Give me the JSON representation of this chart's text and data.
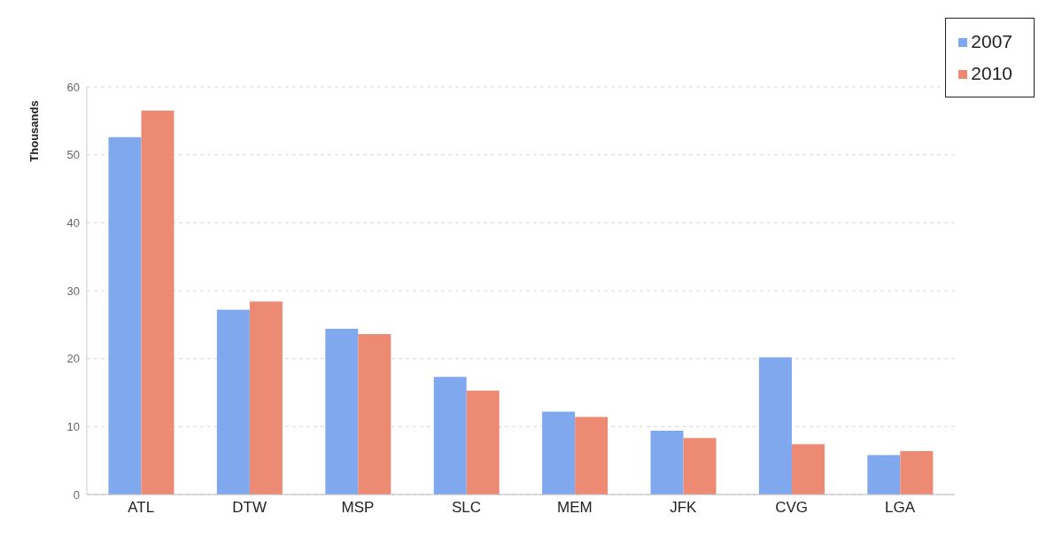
{
  "chart_data": {
    "type": "bar",
    "ylabel": "Thousands",
    "categories": [
      "ATL",
      "DTW",
      "MSP",
      "SLC",
      "MEM",
      "JFK",
      "CVG",
      "LGA"
    ],
    "series": [
      {
        "name": "2007",
        "color": "#7fa8ee",
        "values": [
          52.6,
          27.2,
          24.4,
          17.3,
          12.2,
          9.4,
          20.2,
          5.8
        ]
      },
      {
        "name": "2010",
        "color": "#ec8a73",
        "values": [
          56.5,
          28.4,
          23.6,
          15.3,
          11.4,
          8.3,
          7.4,
          6.4
        ]
      }
    ],
    "ylim": [
      0,
      60
    ],
    "yticks": [
      0,
      10,
      20,
      30,
      40,
      50,
      60
    ],
    "grid": "y",
    "legend": "top right"
  }
}
